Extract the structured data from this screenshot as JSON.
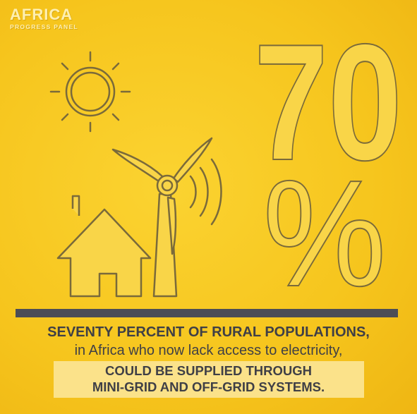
{
  "logo": {
    "title": "AFRICA",
    "subtitle": "PROGRESS PANEL"
  },
  "headline": {
    "number": "70",
    "percent": "%"
  },
  "icons": [
    "sun-icon",
    "wind-turbine-icon",
    "house-icon",
    "signal-waves-icon"
  ],
  "colors": {
    "background": "#f6c51d",
    "bar": "#4c4d56",
    "outline": "#7a6a3a",
    "text": "#3f3f46",
    "highlight": "#fbe28a"
  },
  "caption": {
    "line1": "SEVENTY PERCENT OF RURAL POPULATIONS,",
    "line2": "in Africa who now lack access to electricity,",
    "line3": "COULD BE SUPPLIED THROUGH",
    "line4": "MINI-GRID AND OFF-GRID SYSTEMS."
  }
}
